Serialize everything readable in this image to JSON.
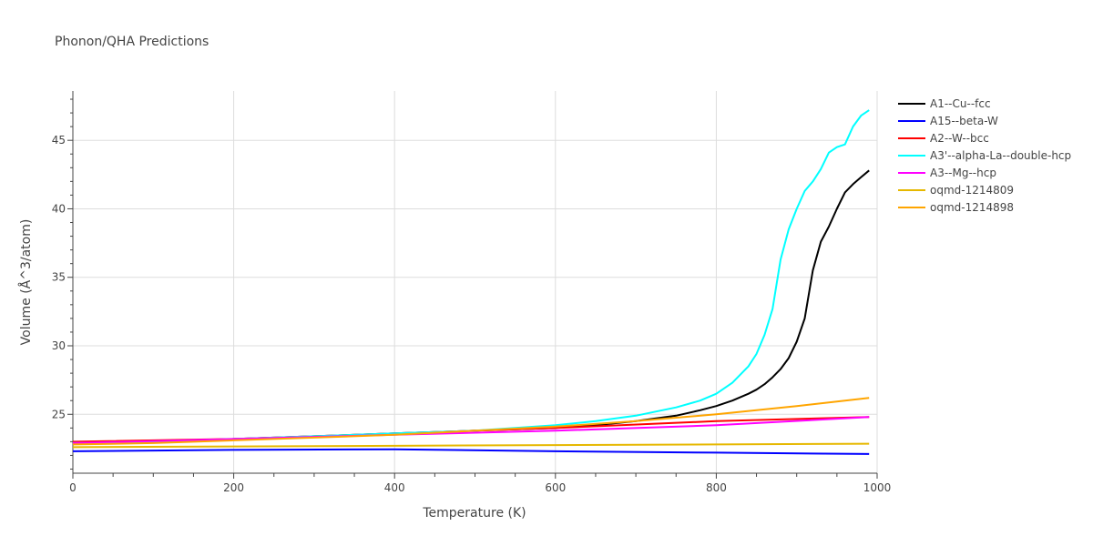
{
  "chart_data": {
    "type": "line",
    "title": "Phonon/QHA Predictions",
    "xlabel": "Temperature (K)",
    "ylabel": "Volume (Å^3/atom)",
    "xlim": [
      0,
      1000
    ],
    "ylim": [
      20.7,
      48.6
    ],
    "xticks": [
      0,
      200,
      400,
      600,
      800,
      1000
    ],
    "yticks": [
      25,
      30,
      35,
      40,
      45
    ],
    "grid": true,
    "legend_position": "right",
    "series": [
      {
        "name": "A1--Cu--fcc",
        "color": "#000000",
        "x": [
          0,
          100,
          200,
          300,
          400,
          500,
          600,
          650,
          700,
          750,
          780,
          800,
          820,
          840,
          850,
          860,
          870,
          880,
          890,
          900,
          910,
          920,
          930,
          940,
          950,
          960,
          970,
          980,
          990
        ],
        "y": [
          22.9,
          23.0,
          23.2,
          23.4,
          23.6,
          23.8,
          24.0,
          24.2,
          24.5,
          24.9,
          25.3,
          25.6,
          26.0,
          26.5,
          26.8,
          27.2,
          27.7,
          28.3,
          29.1,
          30.3,
          32.0,
          35.5,
          37.6,
          38.7,
          40.0,
          41.2,
          41.8,
          42.3,
          42.8
        ]
      },
      {
        "name": "A15--beta-W",
        "color": "#0000ff",
        "x": [
          0,
          200,
          400,
          600,
          800,
          990
        ],
        "y": [
          22.3,
          22.4,
          22.45,
          22.3,
          22.2,
          22.1
        ]
      },
      {
        "name": "A2--W--bcc",
        "color": "#ff0000",
        "x": [
          0,
          200,
          400,
          600,
          800,
          990
        ],
        "y": [
          23.0,
          23.2,
          23.6,
          24.0,
          24.5,
          24.8
        ]
      },
      {
        "name": "A3'--alpha-La--double-hcp",
        "color": "#00ffff",
        "x": [
          0,
          100,
          200,
          300,
          400,
          500,
          600,
          650,
          700,
          750,
          780,
          800,
          820,
          840,
          850,
          860,
          870,
          880,
          890,
          900,
          910,
          920,
          930,
          940,
          950,
          960,
          970,
          980,
          990
        ],
        "y": [
          22.9,
          23.0,
          23.2,
          23.4,
          23.6,
          23.8,
          24.2,
          24.5,
          24.9,
          25.5,
          26.0,
          26.5,
          27.3,
          28.5,
          29.4,
          30.8,
          32.7,
          36.3,
          38.5,
          40.0,
          41.3,
          42.0,
          42.9,
          44.1,
          44.5,
          44.7,
          46.0,
          46.8,
          47.2
        ]
      },
      {
        "name": "A3--Mg--hcp",
        "color": "#ff00ff",
        "x": [
          0,
          200,
          400,
          600,
          800,
          990
        ],
        "y": [
          22.9,
          23.2,
          23.5,
          23.8,
          24.2,
          24.8
        ]
      },
      {
        "name": "oqmd-1214809",
        "color": "#e6b800",
        "x": [
          0,
          200,
          400,
          600,
          800,
          990
        ],
        "y": [
          22.6,
          22.65,
          22.7,
          22.75,
          22.8,
          22.85
        ]
      },
      {
        "name": "oqmd-1214898",
        "color": "#ffa500",
        "x": [
          0,
          100,
          200,
          300,
          400,
          500,
          600,
          700,
          800,
          900,
          990
        ],
        "y": [
          22.8,
          22.9,
          23.1,
          23.3,
          23.5,
          23.8,
          24.1,
          24.5,
          25.0,
          25.6,
          26.2
        ]
      }
    ]
  }
}
